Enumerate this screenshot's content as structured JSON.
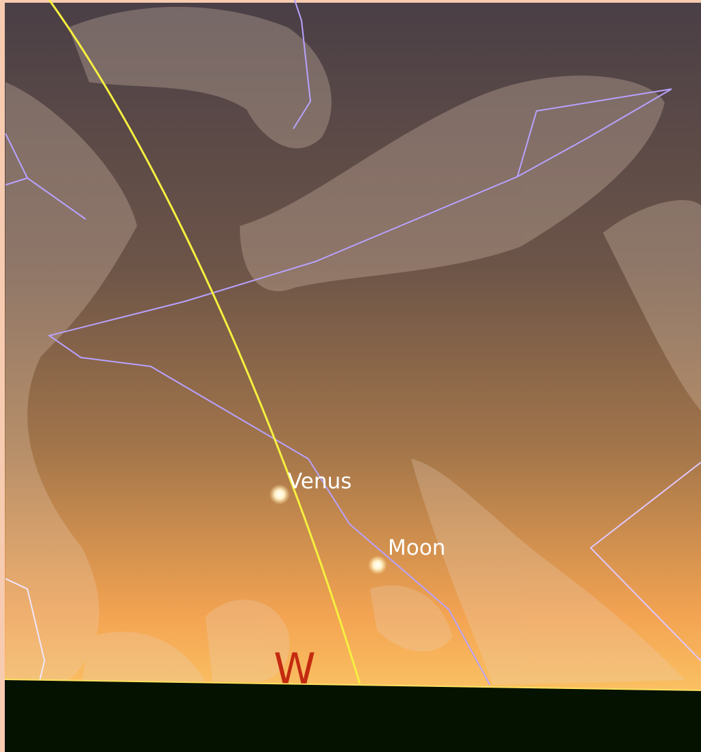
{
  "labels": {
    "venus": "Venus",
    "moon": "Moon",
    "direction": "W"
  }
}
